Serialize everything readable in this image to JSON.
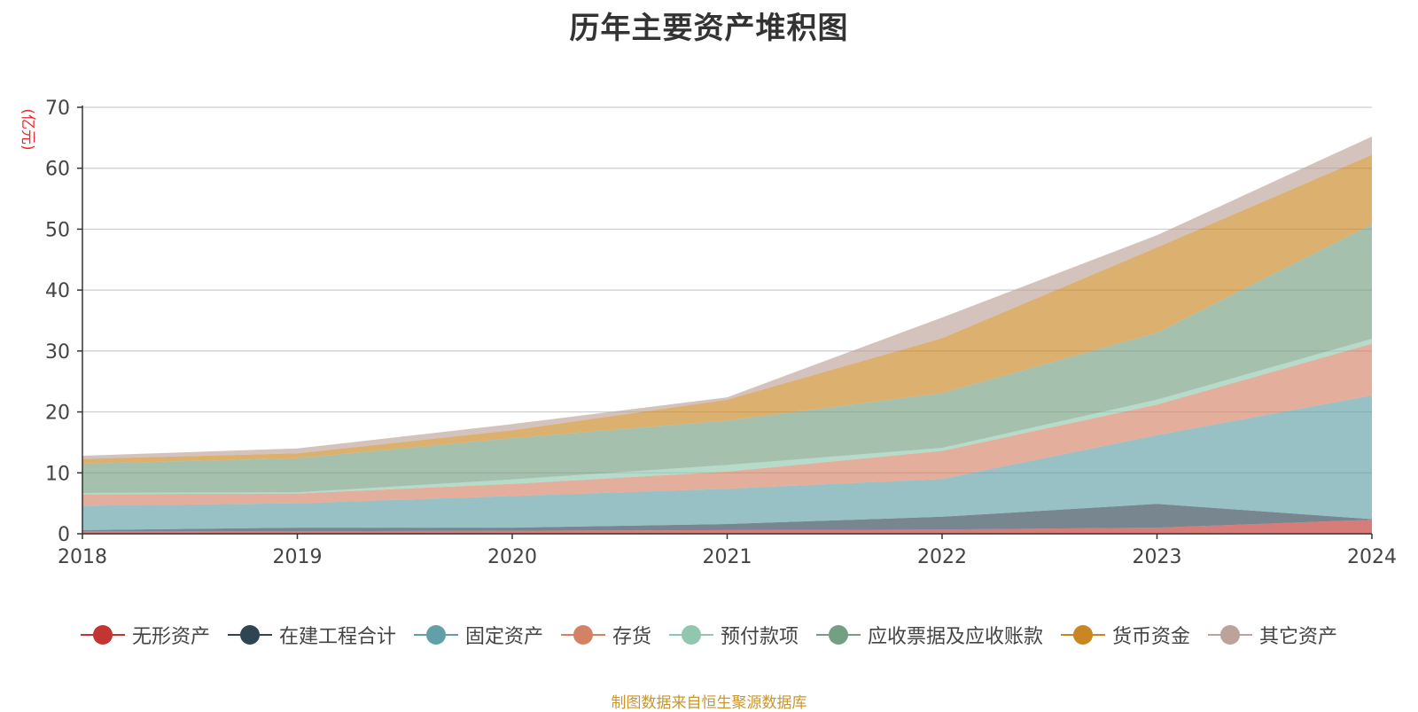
{
  "chart_data": {
    "type": "area",
    "stacked": true,
    "title": "历年主要资产堆积图",
    "ylabel": "(亿元)",
    "xlabel": "",
    "x": [
      "2018",
      "2019",
      "2020",
      "2021",
      "2022",
      "2023",
      "2024"
    ],
    "ylim": [
      0,
      70
    ],
    "yticks": [
      "0",
      "10",
      "20",
      "30",
      "40",
      "50",
      "60",
      "70"
    ],
    "grid": true,
    "legend_position": "bottom",
    "series": [
      {
        "name": "无形资产",
        "color": "#c23531",
        "values": [
          0.4,
          0.4,
          0.5,
          0.6,
          0.7,
          1.0,
          2.3
        ]
      },
      {
        "name": "在建工程合计",
        "color": "#2f4554",
        "values": [
          0.2,
          0.6,
          0.5,
          1.0,
          2.1,
          3.9,
          0.1
        ]
      },
      {
        "name": "固定资产",
        "color": "#61a0a8",
        "values": [
          4.0,
          4.0,
          5.2,
          5.8,
          6.2,
          11.3,
          20.3
        ]
      },
      {
        "name": "存货",
        "color": "#d48265",
        "values": [
          1.9,
          1.6,
          2.0,
          2.8,
          4.6,
          5.0,
          8.5
        ]
      },
      {
        "name": "预付款项",
        "color": "#91c7ae",
        "values": [
          0.2,
          0.2,
          0.7,
          1.1,
          0.5,
          0.8,
          0.8
        ]
      },
      {
        "name": "应收票据及应收账款",
        "color": "#749f83",
        "values": [
          4.8,
          5.6,
          6.8,
          7.3,
          9.0,
          11.0,
          18.8
        ]
      },
      {
        "name": "货币资金",
        "color": "#ca8622",
        "values": [
          0.8,
          0.8,
          1.3,
          3.4,
          9.0,
          14.0,
          11.4
        ]
      },
      {
        "name": "其它资产",
        "color": "#bda29a",
        "values": [
          0.5,
          0.8,
          1.0,
          0.4,
          3.4,
          2.0,
          3.0
        ]
      }
    ]
  },
  "source_note": "制图数据来自恒生聚源数据库"
}
